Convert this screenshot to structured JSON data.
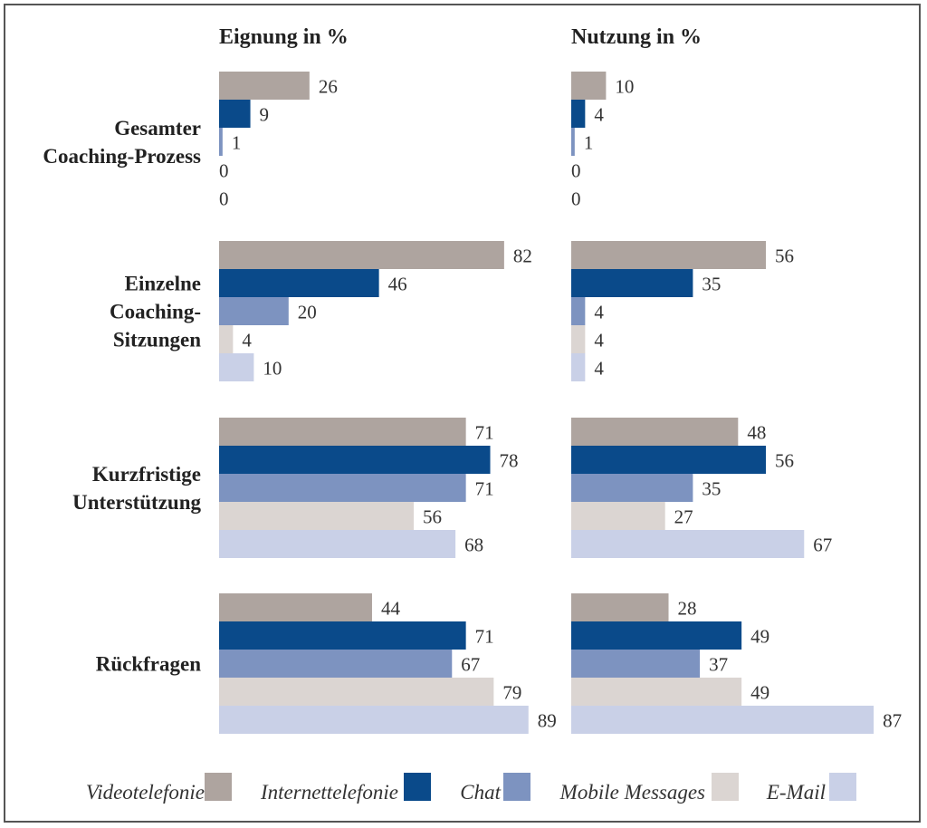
{
  "chart_data": {
    "type": "bar",
    "orientation": "horizontal",
    "panels": [
      {
        "title": "Eignung in %",
        "xlim": [
          0,
          100
        ]
      },
      {
        "title": "Nutzung in %",
        "xlim": [
          0,
          100
        ]
      }
    ],
    "groups": [
      {
        "label_lines": [
          "Gesamter",
          "Coaching-Prozess"
        ]
      },
      {
        "label_lines": [
          "Einzelne",
          "Coaching-",
          "Sitzungen"
        ]
      },
      {
        "label_lines": [
          "Kurzfristige",
          "Unterstützung"
        ]
      },
      {
        "label_lines": [
          "Rückfragen"
        ]
      }
    ],
    "series": [
      {
        "name": "Videotelefonie",
        "color": "#aea49f",
        "eignung": [
          26,
          82,
          71,
          44
        ],
        "nutzung": [
          10,
          56,
          48,
          28
        ]
      },
      {
        "name": "Internettelefonie",
        "color": "#0a4a8a",
        "eignung": [
          9,
          46,
          78,
          71
        ],
        "nutzung": [
          4,
          35,
          56,
          49
        ]
      },
      {
        "name": "Chat",
        "color": "#7d93c0",
        "eignung": [
          1,
          20,
          71,
          67
        ],
        "nutzung": [
          1,
          4,
          35,
          37
        ]
      },
      {
        "name": "Mobile Messages",
        "color": "#dbd5d2",
        "eignung": [
          0,
          4,
          56,
          79
        ],
        "nutzung": [
          0,
          4,
          27,
          49
        ]
      },
      {
        "name": "E-Mail",
        "color": "#c9d0e7",
        "eignung": [
          0,
          10,
          68,
          89
        ],
        "nutzung": [
          0,
          4,
          67,
          87
        ]
      }
    ],
    "grid": false,
    "legend_position": "bottom"
  }
}
